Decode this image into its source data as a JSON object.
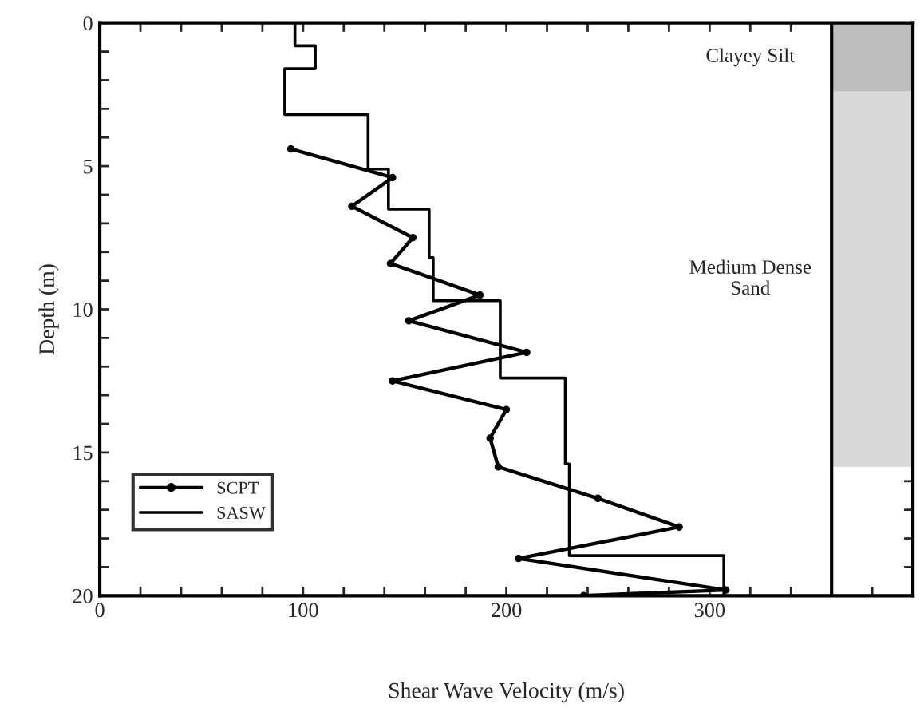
{
  "chart_data": {
    "type": "line",
    "orientation": "horizontal",
    "xlabel": "Shear Wave Velocity (m/s)",
    "ylabel": "Depth (m)",
    "xlim": [
      0,
      400
    ],
    "ylim": [
      20,
      0
    ],
    "xticks": [
      0,
      {
        "value": 20,
        "label": null
      },
      {
        "value": 40,
        "label": null
      },
      {
        "value": 60,
        "label": null
      },
      {
        "value": 80,
        "label": null
      },
      100,
      {
        "value": 120,
        "label": null
      },
      {
        "value": 140,
        "label": null
      },
      {
        "value": 160,
        "label": null
      },
      {
        "value": 180,
        "label": null
      },
      200,
      {
        "value": 220,
        "label": null
      },
      {
        "value": 240,
        "label": null
      },
      {
        "value": 260,
        "label": null
      },
      {
        "value": 280,
        "label": null
      },
      300,
      {
        "value": 320,
        "label": null
      },
      {
        "value": 340,
        "label": null
      },
      {
        "value": 360,
        "label": null
      },
      {
        "value": 380,
        "label": null
      }
    ],
    "yticks": [
      0,
      {
        "value": 1,
        "label": null
      },
      {
        "value": 2,
        "label": null
      },
      {
        "value": 3,
        "label": null
      },
      {
        "value": 4,
        "label": null
      },
      5,
      {
        "value": 6,
        "label": null
      },
      {
        "value": 7,
        "label": null
      },
      {
        "value": 8,
        "label": null
      },
      {
        "value": 9,
        "label": null
      },
      10,
      {
        "value": 11,
        "label": null
      },
      {
        "value": 12,
        "label": null
      },
      {
        "value": 13,
        "label": null
      },
      {
        "value": 14,
        "label": null
      },
      15,
      {
        "value": 16,
        "label": null
      },
      {
        "value": 17,
        "label": null
      },
      {
        "value": 18,
        "label": null
      },
      {
        "value": 19,
        "label": null
      },
      20
    ],
    "series": [
      {
        "name": "SCPT",
        "type": "line",
        "color": "#000000",
        "marker": "circle",
        "x": [
          4.4,
          5.4,
          6.4,
          7.5,
          8.4,
          9.5,
          10.4,
          11.5,
          12.5,
          13.5,
          14.5,
          15.5,
          16.6,
          17.6,
          18.7,
          19.8,
          20
        ],
        "values": [
          94,
          144,
          124,
          154,
          143,
          187,
          152,
          210,
          144,
          200,
          192,
          196,
          245,
          285,
          206,
          308,
          238
        ]
      },
      {
        "name": "SASW",
        "type": "step",
        "color": "#000000",
        "x": [
          0,
          0.8,
          1.6,
          3.2,
          5.1,
          6.5,
          8.2,
          9.7,
          12.4,
          15.4,
          18.6,
          20
        ],
        "values": [
          96,
          106,
          91,
          132,
          142,
          162,
          164,
          197,
          229,
          231,
          307,
          307
        ]
      }
    ],
    "ref_lines": [
      {
        "axis": "x",
        "value": 360,
        "color": "#000000"
      }
    ],
    "bands": [
      {
        "axis": "y",
        "from": 0,
        "to": 2.4,
        "label": "Clayey Silt",
        "color": "#bdbdbd"
      },
      {
        "axis": "y",
        "from": 2.4,
        "to": 15.5,
        "label": "Medium Dense Sand",
        "color": "#d9d9d9"
      }
    ],
    "legend": "bottom left",
    "grid": false
  }
}
